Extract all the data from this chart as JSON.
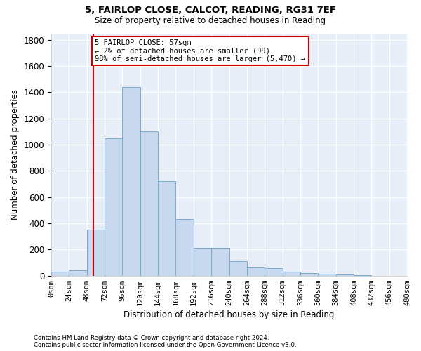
{
  "title1": "5, FAIRLOP CLOSE, CALCOT, READING, RG31 7EF",
  "title2": "Size of property relative to detached houses in Reading",
  "xlabel": "Distribution of detached houses by size in Reading",
  "ylabel": "Number of detached properties",
  "footnote1": "Contains HM Land Registry data © Crown copyright and database right 2024.",
  "footnote2": "Contains public sector information licensed under the Open Government Licence v3.0.",
  "bin_labels": [
    "0sqm",
    "24sqm",
    "48sqm",
    "72sqm",
    "96sqm",
    "120sqm",
    "144sqm",
    "168sqm",
    "192sqm",
    "216sqm",
    "240sqm",
    "264sqm",
    "288sqm",
    "312sqm",
    "336sqm",
    "360sqm",
    "384sqm",
    "408sqm",
    "432sqm",
    "456sqm",
    "480sqm"
  ],
  "bar_values": [
    30,
    40,
    350,
    1050,
    1440,
    1100,
    720,
    430,
    215,
    215,
    110,
    60,
    55,
    30,
    20,
    15,
    10,
    5,
    0,
    0
  ],
  "bar_color": "#c8d8ee",
  "bar_edge_color": "#7aaacf",
  "vline_x": 57,
  "vline_color": "#cc0000",
  "annotation_line1": "5 FAIRLOP CLOSE: 57sqm",
  "annotation_line2": "← 2% of detached houses are smaller (99)",
  "annotation_line3": "98% of semi-detached houses are larger (5,470) →",
  "ylim_max": 1850,
  "yticks": [
    0,
    200,
    400,
    600,
    800,
    1000,
    1200,
    1400,
    1600,
    1800
  ],
  "bin_width": 24,
  "xlim_max": 480,
  "bg_color": "#e8eef7"
}
